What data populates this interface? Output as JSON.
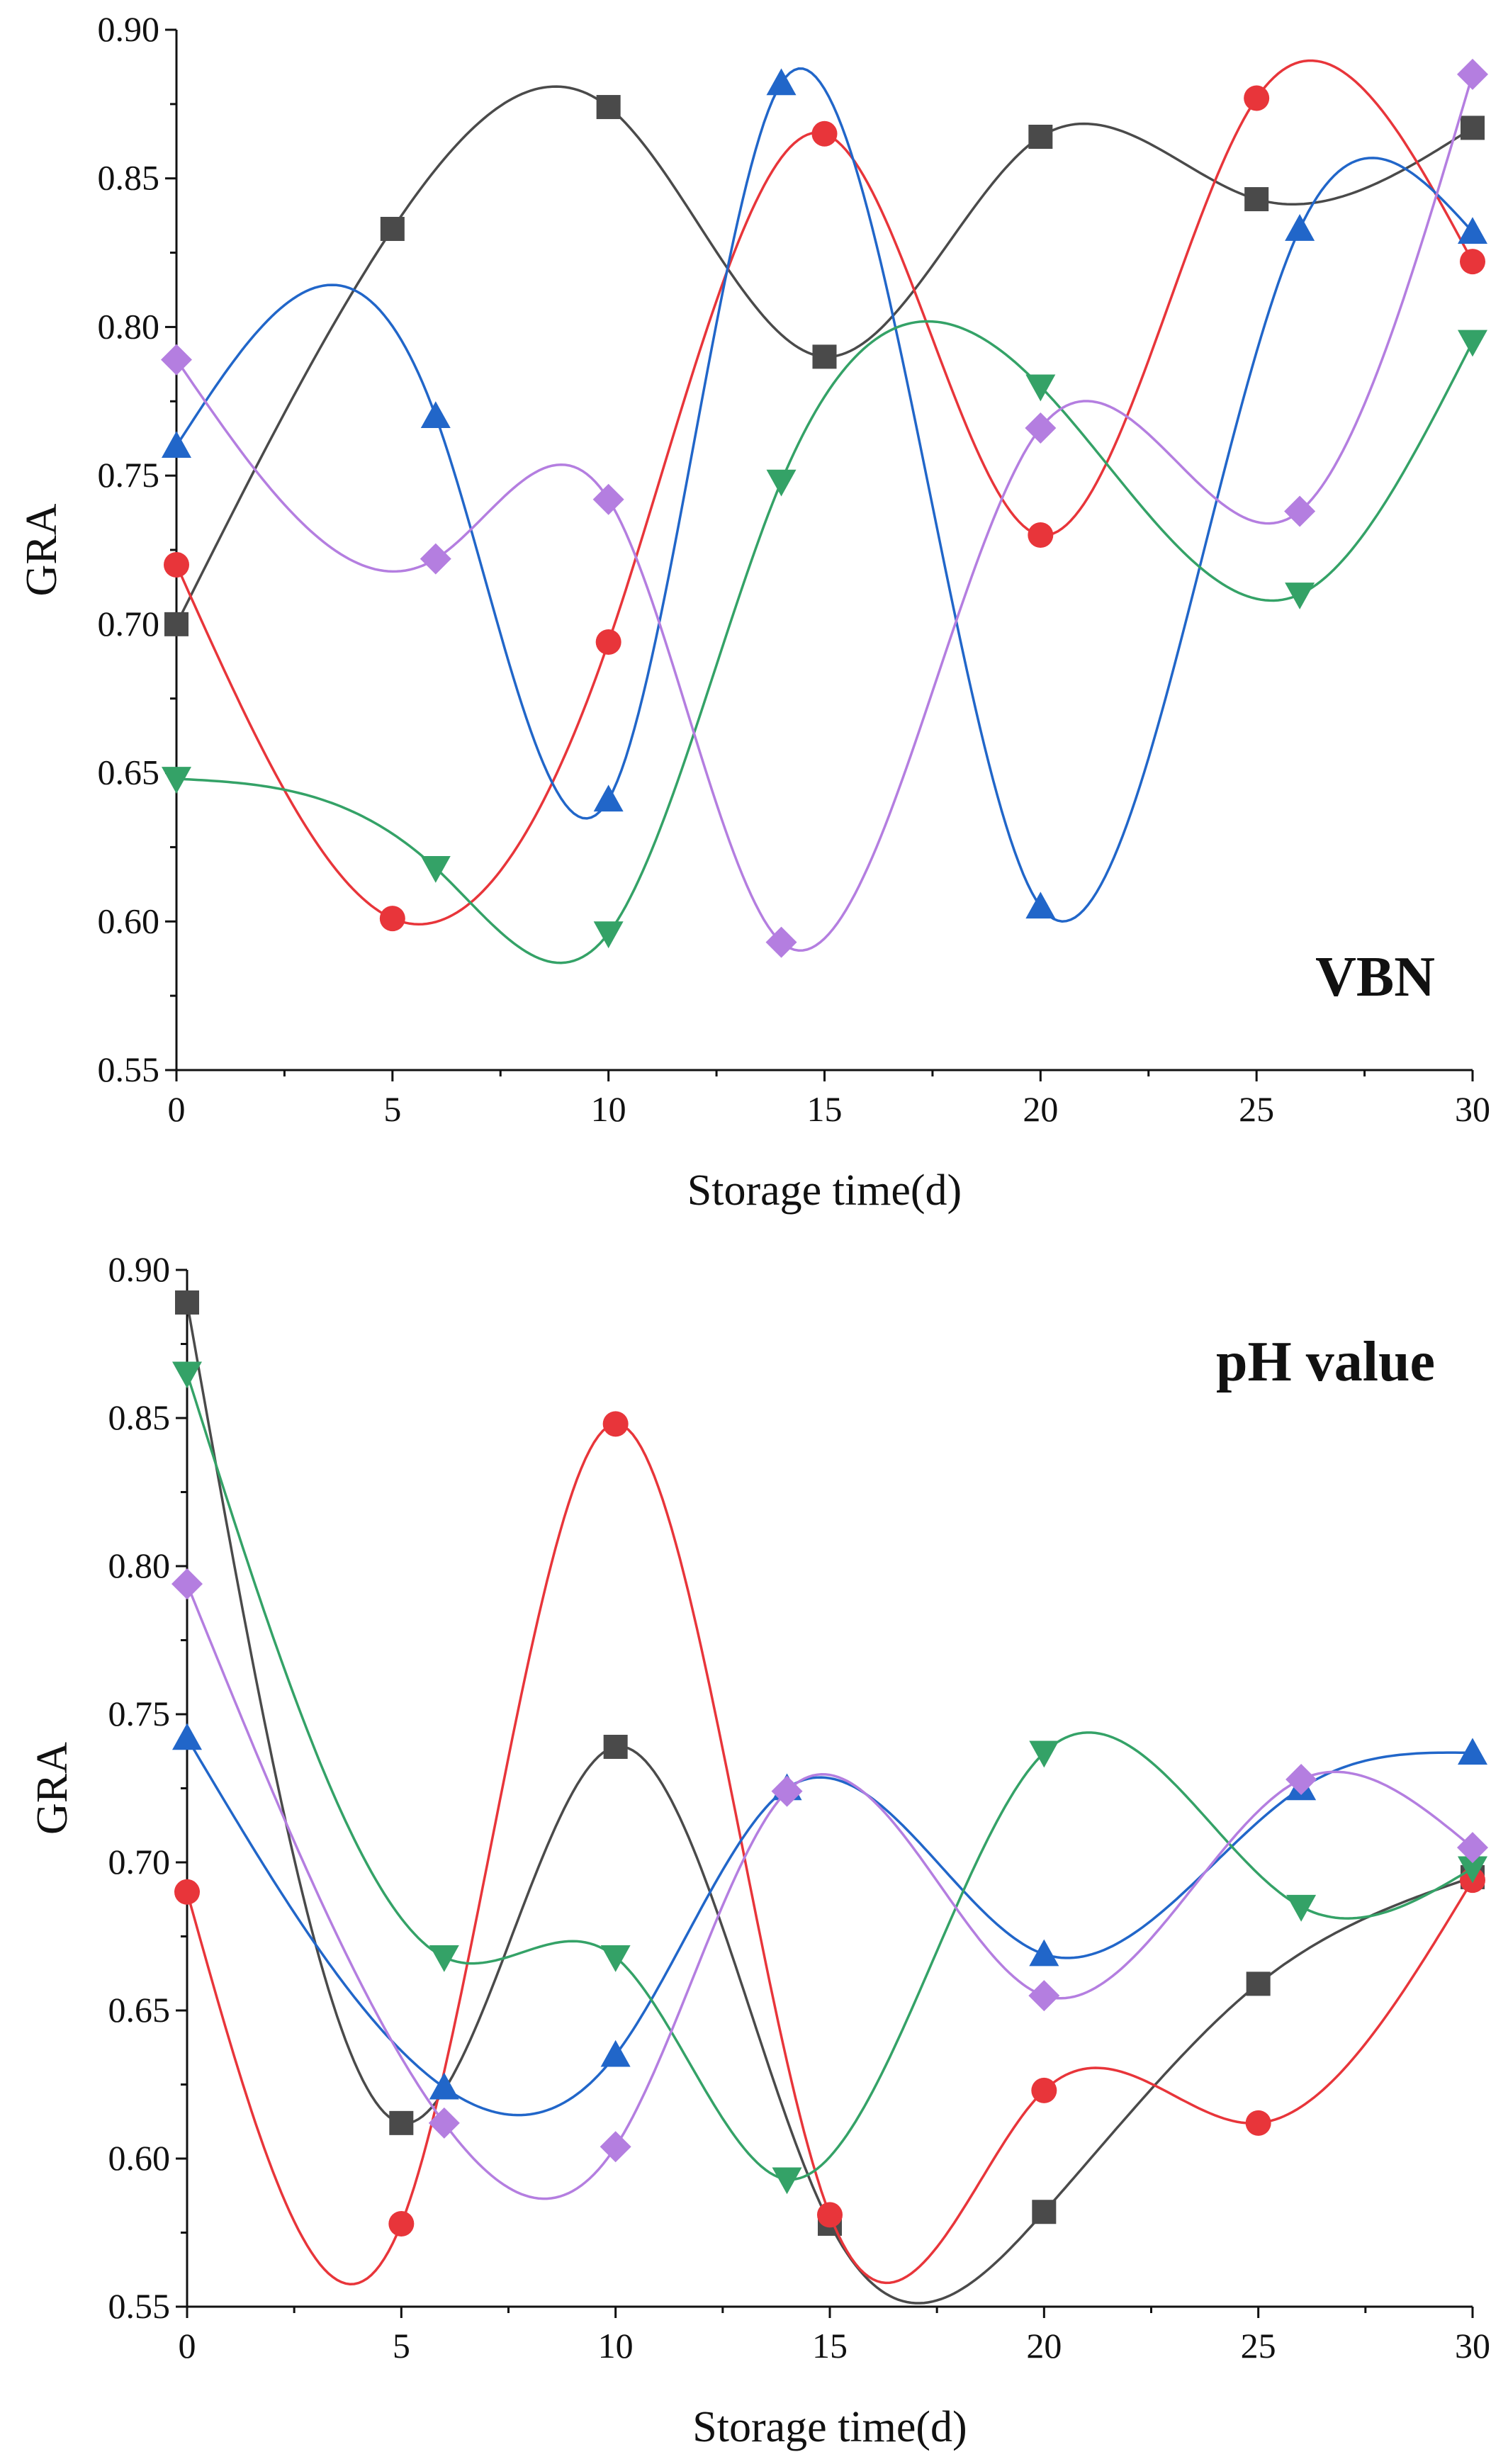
{
  "colors": {
    "black": "#4a4a4a",
    "red": "#e8353a",
    "blue": "#2166c9",
    "green": "#34a267",
    "purple": "#b47ee0",
    "axis": "#111111"
  },
  "chart_data": [
    {
      "type": "line",
      "title": "VBN",
      "xlabel": "Storage time(d)",
      "ylabel": "GRA",
      "xlim": [
        0,
        30
      ],
      "ylim": [
        0.55,
        0.9
      ],
      "xticks": [
        "0",
        "5",
        "10",
        "15",
        "20",
        "25",
        "30"
      ],
      "yticks": [
        "0.55",
        "0.60",
        "0.65",
        "0.70",
        "0.75",
        "0.80",
        "0.85",
        "0.90"
      ],
      "series": [
        {
          "name": "square",
          "marker": "square",
          "color": "#4a4a4a",
          "x": [
            0,
            5,
            10,
            15,
            20,
            25,
            30
          ],
          "values": [
            0.7,
            0.833,
            0.874,
            0.79,
            0.864,
            0.843,
            0.867
          ]
        },
        {
          "name": "circle",
          "marker": "circle",
          "color": "#e8353a",
          "x": [
            0,
            5,
            10,
            15,
            20,
            25,
            30
          ],
          "values": [
            0.72,
            0.601,
            0.694,
            0.865,
            0.73,
            0.877,
            0.822
          ]
        },
        {
          "name": "triangle-up",
          "marker": "triangle-up",
          "color": "#2166c9",
          "x": [
            0,
            6,
            10,
            14,
            20,
            26,
            30
          ],
          "values": [
            0.76,
            0.77,
            0.641,
            0.882,
            0.605,
            0.833,
            0.832
          ]
        },
        {
          "name": "triangle-down",
          "marker": "triangle-down",
          "color": "#34a267",
          "x": [
            0,
            6,
            10,
            14,
            20,
            26,
            30
          ],
          "values": [
            0.648,
            0.618,
            0.596,
            0.748,
            0.78,
            0.71,
            0.795
          ]
        },
        {
          "name": "diamond",
          "marker": "diamond",
          "color": "#b47ee0",
          "x": [
            0,
            6,
            10,
            14,
            20,
            26,
            30
          ],
          "values": [
            0.789,
            0.722,
            0.742,
            0.593,
            0.766,
            0.738,
            0.885
          ]
        }
      ]
    },
    {
      "type": "line",
      "title": "pH value",
      "xlabel": "Storage time(d)",
      "ylabel": "GRA",
      "xlim": [
        0,
        30
      ],
      "ylim": [
        0.55,
        0.9
      ],
      "xticks": [
        "0",
        "5",
        "10",
        "15",
        "20",
        "25",
        "30"
      ],
      "yticks": [
        "0.55",
        "0.60",
        "0.65",
        "0.70",
        "0.75",
        "0.80",
        "0.85",
        "0.90"
      ],
      "series": [
        {
          "name": "square",
          "marker": "square",
          "color": "#4a4a4a",
          "x": [
            0,
            5,
            10,
            15,
            20,
            25,
            30
          ],
          "values": [
            0.889,
            0.612,
            0.739,
            0.578,
            0.582,
            0.659,
            0.695
          ]
        },
        {
          "name": "circle",
          "marker": "circle",
          "color": "#e8353a",
          "x": [
            0,
            5,
            10,
            15,
            20,
            25,
            30
          ],
          "values": [
            0.69,
            0.578,
            0.848,
            0.581,
            0.623,
            0.612,
            0.694
          ]
        },
        {
          "name": "triangle-up",
          "marker": "triangle-up",
          "color": "#2166c9",
          "x": [
            0,
            6,
            10,
            14,
            20,
            26,
            30
          ],
          "values": [
            0.742,
            0.624,
            0.635,
            0.725,
            0.669,
            0.725,
            0.737
          ]
        },
        {
          "name": "triangle-down",
          "marker": "triangle-down",
          "color": "#34a267",
          "x": [
            0,
            6,
            10,
            14,
            20,
            26,
            30
          ],
          "values": [
            0.865,
            0.668,
            0.668,
            0.593,
            0.737,
            0.685,
            0.698
          ]
        },
        {
          "name": "diamond",
          "marker": "diamond",
          "color": "#b47ee0",
          "x": [
            0,
            6,
            10,
            14,
            20,
            26,
            30
          ],
          "values": [
            0.794,
            0.612,
            0.604,
            0.724,
            0.655,
            0.728,
            0.705
          ]
        }
      ]
    }
  ]
}
